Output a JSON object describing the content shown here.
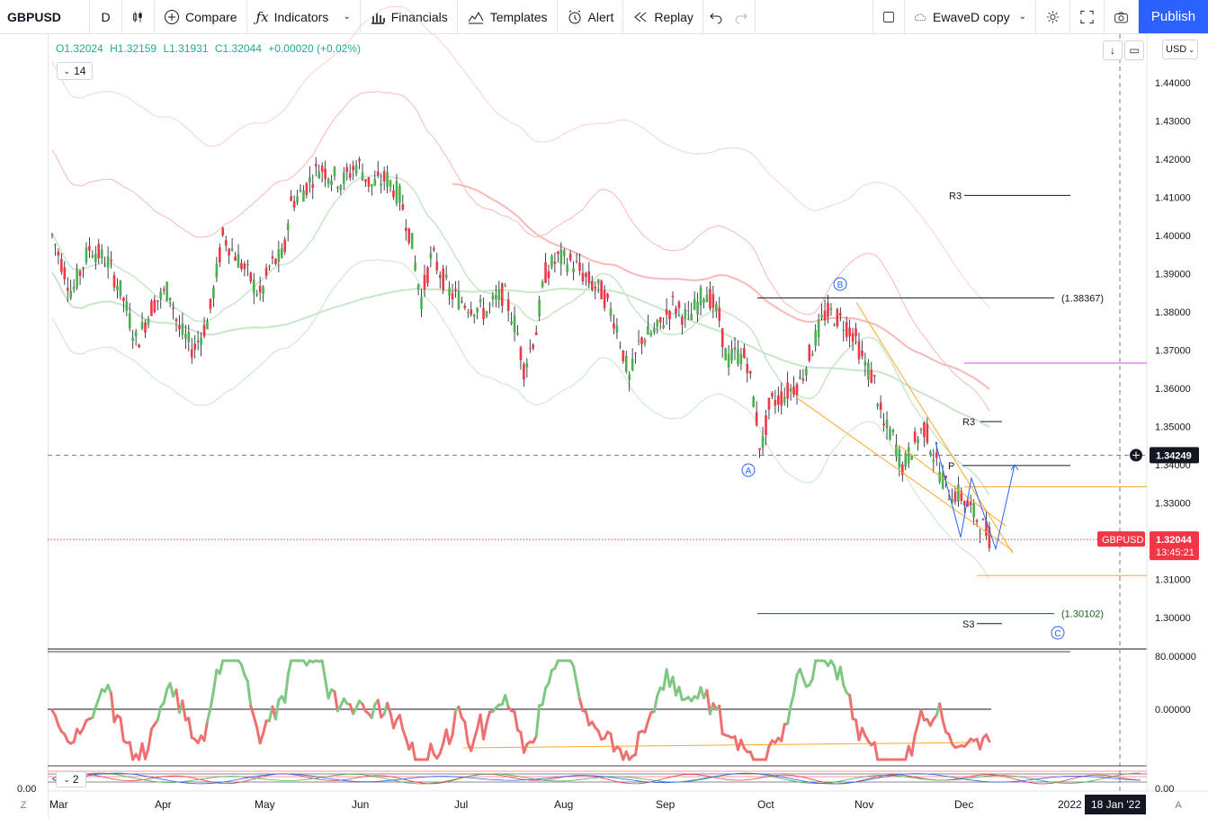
{
  "toolbar": {
    "symbol": "GBPUSD",
    "interval": "D",
    "compare": "Compare",
    "indicators": "Indicators",
    "financials": "Financials",
    "templates": "Templates",
    "alert": "Alert",
    "replay": "Replay",
    "layout_name": "EwaveD copy",
    "publish": "Publish"
  },
  "legend": {
    "open": "O1.32024",
    "high": "H1.32159",
    "low": "L1.31931",
    "close": "C1.32044",
    "change": "+0.00020 (+0.02%)",
    "indicator_count": "14",
    "sub_indicator_count": "2"
  },
  "price_axis": {
    "currency": "USD",
    "ticks": [
      "1.44000",
      "1.43000",
      "1.42000",
      "1.41000",
      "1.40000",
      "1.39000",
      "1.38000",
      "1.37000",
      "1.36000",
      "1.35000",
      "1.34000",
      "1.33000",
      "1.32000",
      "1.31000",
      "1.30000"
    ],
    "crosshair_price": "1.34249",
    "last_price": "1.32044",
    "countdown": "13:45:21",
    "symbol_tag": "GBPUSD"
  },
  "osc_axis": {
    "ticks": [
      "80.00000",
      "0.00000"
    ]
  },
  "sub_axis": {
    "left_value": "0.00",
    "right_value": "0.00"
  },
  "time_axis": {
    "months": [
      "Mar",
      "Apr",
      "May",
      "Jun",
      "Jul",
      "Aug",
      "Sep",
      "Oct",
      "Nov",
      "Dec",
      "2022"
    ],
    "crosshair_date": "18 Jan '22"
  },
  "annotations": {
    "r3_upper": "R3",
    "r3_lower": "R3",
    "p_label": "P",
    "s3": "S3",
    "fib_high": "(1.38367)",
    "fib_low": "(1.30102)",
    "wave_a": "A",
    "wave_b": "B",
    "wave_c": "C"
  },
  "bottom_buttons": {
    "left": "Z",
    "right": "A"
  },
  "colors": {
    "up": "#26a69a",
    "candle_up": "#4caf50",
    "candle_down": "#f23645",
    "accent": "#2962ff",
    "orange": "#ffa726",
    "blue_wave": "#2962ff",
    "osc_up": "#81c784",
    "osc_down": "#ef7070"
  }
}
